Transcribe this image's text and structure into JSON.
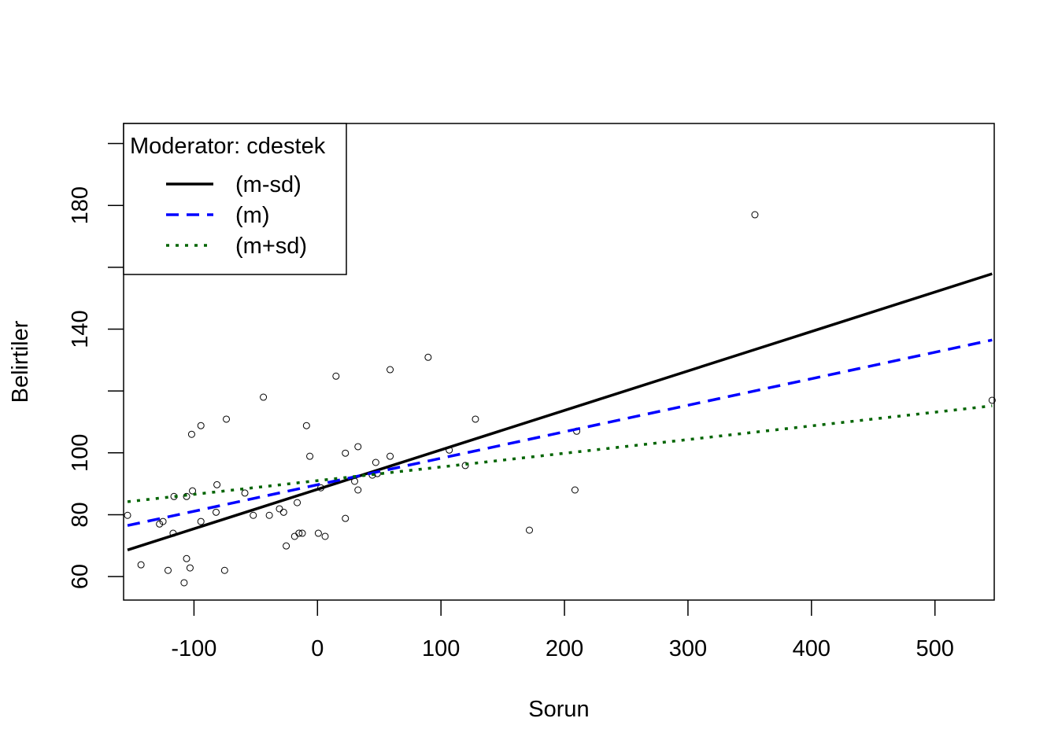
{
  "chart_data": {
    "type": "scatter",
    "title": "",
    "xlabel": "Sorun",
    "ylabel": "Belirtiler",
    "xlim": [
      -157,
      548
    ],
    "ylim": [
      52.4,
      206.5
    ],
    "x_ticks": [
      -100,
      0,
      100,
      200,
      300,
      400,
      500
    ],
    "x_tick_labels": [
      "-100",
      "0",
      "100",
      "200",
      "300",
      "400",
      "500"
    ],
    "y_ticks": [
      60,
      80,
      100,
      120,
      140,
      160,
      180,
      200
    ],
    "y_tick_labels": [
      "60",
      "80",
      "100",
      "",
      "140",
      "",
      "180",
      ""
    ],
    "grid": false,
    "points": [
      [
        -153.8,
        79.8
      ],
      [
        -142.9,
        63.8
      ],
      [
        -127.9,
        77.0
      ],
      [
        -125.1,
        77.8
      ],
      [
        -121.0,
        62.0
      ],
      [
        -116.2,
        85.9
      ],
      [
        -116.9,
        74.0
      ],
      [
        -108.0,
        58.0
      ],
      [
        -106.0,
        65.8
      ],
      [
        -106.0,
        85.9
      ],
      [
        -103.2,
        62.8
      ],
      [
        -101.2,
        87.7
      ],
      [
        -101.9,
        106.0
      ],
      [
        -94.4,
        108.8
      ],
      [
        -94.4,
        77.8
      ],
      [
        -81.4,
        89.7
      ],
      [
        -82.1,
        80.8
      ],
      [
        -75.2,
        62.0
      ],
      [
        -73.8,
        110.9
      ],
      [
        -58.8,
        87.0
      ],
      [
        -52.0,
        79.8
      ],
      [
        -43.8,
        118.0
      ],
      [
        -39.0,
        79.8
      ],
      [
        -30.8,
        81.9
      ],
      [
        -27.4,
        80.8
      ],
      [
        -25.3,
        69.9
      ],
      [
        -18.5,
        73.0
      ],
      [
        -16.4,
        83.9
      ],
      [
        -15.0,
        74.0
      ],
      [
        -12.3,
        74.0
      ],
      [
        -8.9,
        108.8
      ],
      [
        -6.2,
        98.9
      ],
      [
        0.7,
        74.0
      ],
      [
        2.7,
        88.7
      ],
      [
        6.2,
        73.0
      ],
      [
        22.6,
        78.8
      ],
      [
        22.6,
        99.9
      ],
      [
        30.1,
        90.8
      ],
      [
        32.8,
        102.0
      ],
      [
        32.8,
        88.0
      ],
      [
        15.0,
        124.8
      ],
      [
        44.4,
        92.8
      ],
      [
        47.2,
        96.9
      ],
      [
        48.5,
        93.3
      ],
      [
        58.8,
        98.9
      ],
      [
        58.8,
        126.9
      ],
      [
        89.6,
        130.9
      ],
      [
        106.7,
        100.9
      ],
      [
        119.7,
        95.9
      ],
      [
        127.9,
        110.9
      ],
      [
        171.6,
        75.0
      ],
      [
        208.5,
        88.0
      ],
      [
        209.9,
        107.0
      ],
      [
        354.2,
        177.0
      ],
      [
        546.3,
        117.0
      ]
    ],
    "series": [
      {
        "name": "(m-sd)",
        "x": [
          -153.8,
          546.3
        ],
        "y": [
          68.6,
          157.9
        ],
        "color": "#000000",
        "dash": "solid"
      },
      {
        "name": "(m)",
        "x": [
          -153.8,
          546.3
        ],
        "y": [
          76.5,
          136.5
        ],
        "color": "#0000ff",
        "dash": "dashed"
      },
      {
        "name": "(m+sd)",
        "x": [
          -153.8,
          546.3
        ],
        "y": [
          84.2,
          115.2
        ],
        "color": "#006400",
        "dash": "dotted"
      }
    ],
    "legend": {
      "title": "Moderator: cdestek",
      "placement": "top-left"
    }
  }
}
